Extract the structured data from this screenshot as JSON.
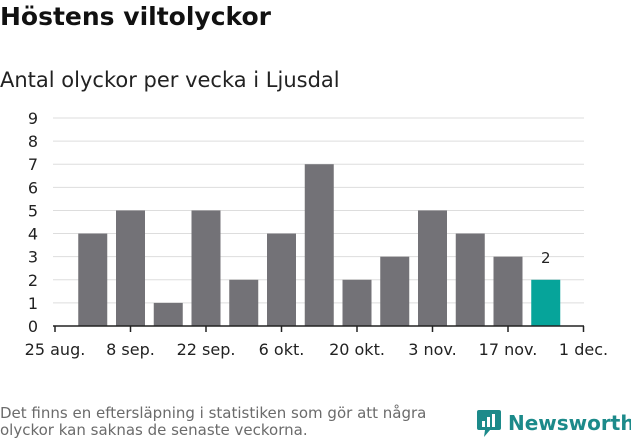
{
  "chart_data": {
    "type": "bar",
    "title": "Höstens viltolyckor",
    "subtitle": "Antal olyckor per vecka i Ljusdal",
    "x_tick_labels": [
      "25 aug.",
      "8 sep.",
      "22 sep.",
      "6 okt.",
      "20 okt.",
      "3 nov.",
      "17 nov.",
      "1 dec."
    ],
    "y_ticks": [
      0,
      1,
      2,
      3,
      4,
      5,
      6,
      7,
      8,
      9
    ],
    "ylim": [
      0,
      9
    ],
    "grid": true,
    "values": [
      4,
      5,
      1,
      5,
      2,
      4,
      7,
      2,
      3,
      5,
      4,
      3,
      2
    ],
    "highlight_index": 12,
    "data_labels": [
      {
        "index": 12,
        "text": "2"
      }
    ],
    "colors": {
      "bar": "#737277",
      "highlight": "#06a49a",
      "grid": "#dddddd",
      "axis": "#222222"
    }
  },
  "footnote": "Det finns en eftersläpning i statistiken som gör att några olyckor kan saknas de senaste veckorna.",
  "brand": {
    "name": "Newsworthy",
    "icon": "newsworthy-logo-icon",
    "color": "#1c8a8a"
  }
}
